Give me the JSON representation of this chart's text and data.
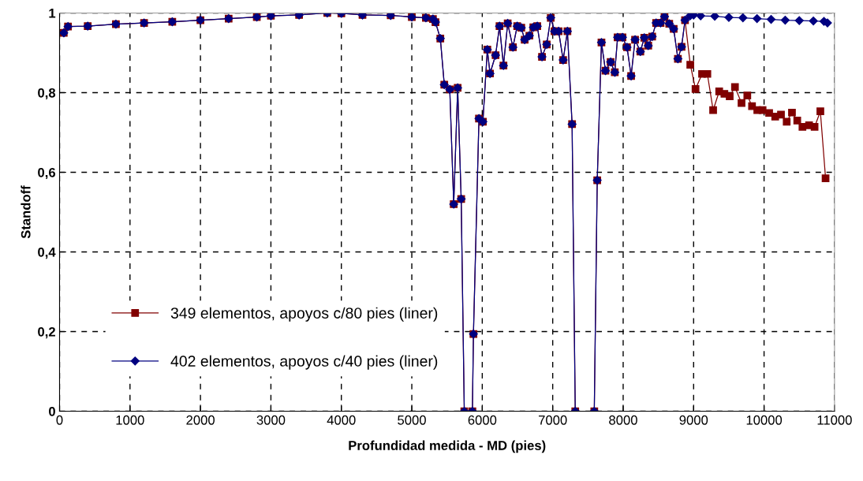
{
  "chart_data": {
    "type": "line",
    "xlabel": "Profundidad medida - MD (pies)",
    "ylabel": "Standoff",
    "xlim": [
      0,
      11000
    ],
    "xticks": [
      0,
      1000,
      2000,
      3000,
      4000,
      5000,
      6000,
      7000,
      8000,
      9000,
      10000,
      11000
    ],
    "ylim": [
      0,
      1
    ],
    "yticks": [
      0,
      {
        "value": 0.2,
        "label": "0,2"
      },
      {
        "value": 0.4,
        "label": "0,4"
      },
      {
        "value": 0.6,
        "label": "0,6"
      },
      {
        "value": 0.8,
        "label": "0,8"
      },
      1
    ],
    "grid": true,
    "legend": "bottom left",
    "series": [
      {
        "name": "349 elementos, apoyos c/80 pies (liner)",
        "color": "#800000",
        "marker": "square",
        "x": [
          60,
          120,
          400,
          800,
          1200,
          1600,
          2000,
          2400,
          2800,
          3000,
          3400,
          3800,
          4000,
          4300,
          4700,
          5000,
          5200,
          5300,
          5336,
          5405,
          5461,
          5539,
          5595,
          5651,
          5701,
          5745,
          5860,
          5875,
          5953,
          6009,
          6072,
          6110,
          6189,
          6245,
          6301,
          6361,
          6435,
          6496,
          6554,
          6602,
          6669,
          6725,
          6781,
          6848,
          6915,
          6972,
          7026,
          7084,
          7148,
          7209,
          7275,
          7320,
          7590,
          7632,
          7692,
          7749,
          7822,
          7881,
          7921,
          7990,
          8055,
          8113,
          8169,
          8244,
          8300,
          8356,
          8412,
          8468,
          8531,
          8587,
          8654,
          8717,
          8777,
          8829,
          8878,
          8953,
          9027,
          9120,
          9195,
          9277,
          9363,
          9437,
          9512,
          9587,
          9680,
          9762,
          9829,
          9904,
          9979,
          10072,
          10158,
          10240,
          10321,
          10396,
          10471,
          10545,
          10639,
          10717,
          10799,
          10873
        ],
        "values": [
          0.95,
          0.966,
          0.967,
          0.972,
          0.975,
          0.978,
          0.982,
          0.986,
          0.99,
          0.993,
          0.995,
          1.0,
          0.999,
          0.995,
          0.994,
          0.99,
          0.988,
          0.985,
          0.977,
          0.936,
          0.82,
          0.808,
          0.52,
          0.812,
          0.533,
          0,
          0,
          0.194,
          0.735,
          0.727,
          0.908,
          0.848,
          0.894,
          0.967,
          0.868,
          0.974,
          0.914,
          0.967,
          0.963,
          0.933,
          0.943,
          0.964,
          0.967,
          0.89,
          0.921,
          0.988,
          0.954,
          0.954,
          0.882,
          0.954,
          0.721,
          0,
          0,
          0.58,
          0.926,
          0.855,
          0.877,
          0.851,
          0.939,
          0.939,
          0.914,
          0.842,
          0.933,
          0.903,
          0.938,
          0.918,
          0.941,
          0.975,
          0.975,
          0.991,
          0.973,
          0.96,
          0.885,
          0.915,
          0.982,
          0.87,
          0.809,
          0.847,
          0.847,
          0.756,
          0.803,
          0.797,
          0.791,
          0.814,
          0.774,
          0.793,
          0.766,
          0.756,
          0.756,
          0.749,
          0.74,
          0.745,
          0.727,
          0.75,
          0.73,
          0.714,
          0.718,
          0.714,
          0.753,
          0.585
        ]
      },
      {
        "name": "402 elementos, apoyos c/40 pies (liner)",
        "color": "#000080",
        "marker": "diamond",
        "x": [
          60,
          120,
          400,
          800,
          1200,
          1600,
          2000,
          2400,
          2800,
          3000,
          3400,
          3800,
          4000,
          4300,
          4700,
          5000,
          5200,
          5300,
          5336,
          5405,
          5461,
          5539,
          5595,
          5651,
          5701,
          5745,
          5860,
          5875,
          5953,
          6009,
          6072,
          6110,
          6189,
          6245,
          6301,
          6361,
          6435,
          6496,
          6554,
          6602,
          6669,
          6725,
          6781,
          6848,
          6915,
          6972,
          7026,
          7084,
          7148,
          7209,
          7275,
          7320,
          7590,
          7632,
          7692,
          7749,
          7822,
          7881,
          7921,
          7990,
          8055,
          8113,
          8169,
          8244,
          8300,
          8356,
          8412,
          8468,
          8531,
          8587,
          8654,
          8717,
          8777,
          8829,
          8878,
          8950,
          9000,
          9100,
          9300,
          9500,
          9700,
          9900,
          10100,
          10300,
          10500,
          10700,
          10850,
          10900
        ],
        "values": [
          0.95,
          0.966,
          0.967,
          0.972,
          0.975,
          0.978,
          0.982,
          0.986,
          0.99,
          0.993,
          0.995,
          1.0,
          0.999,
          0.995,
          0.994,
          0.99,
          0.988,
          0.985,
          0.977,
          0.936,
          0.82,
          0.808,
          0.52,
          0.812,
          0.533,
          0,
          0,
          0.194,
          0.735,
          0.727,
          0.908,
          0.848,
          0.894,
          0.967,
          0.868,
          0.974,
          0.914,
          0.967,
          0.963,
          0.933,
          0.943,
          0.964,
          0.967,
          0.89,
          0.921,
          0.988,
          0.954,
          0.954,
          0.882,
          0.954,
          0.721,
          0,
          0,
          0.58,
          0.926,
          0.855,
          0.877,
          0.851,
          0.939,
          0.939,
          0.914,
          0.842,
          0.933,
          0.903,
          0.938,
          0.918,
          0.941,
          0.975,
          0.975,
          0.991,
          0.973,
          0.96,
          0.885,
          0.915,
          0.982,
          0.993,
          0.995,
          0.993,
          0.992,
          0.989,
          0.988,
          0.986,
          0.984,
          0.982,
          0.981,
          0.98,
          0.979,
          0.975
        ]
      }
    ]
  }
}
